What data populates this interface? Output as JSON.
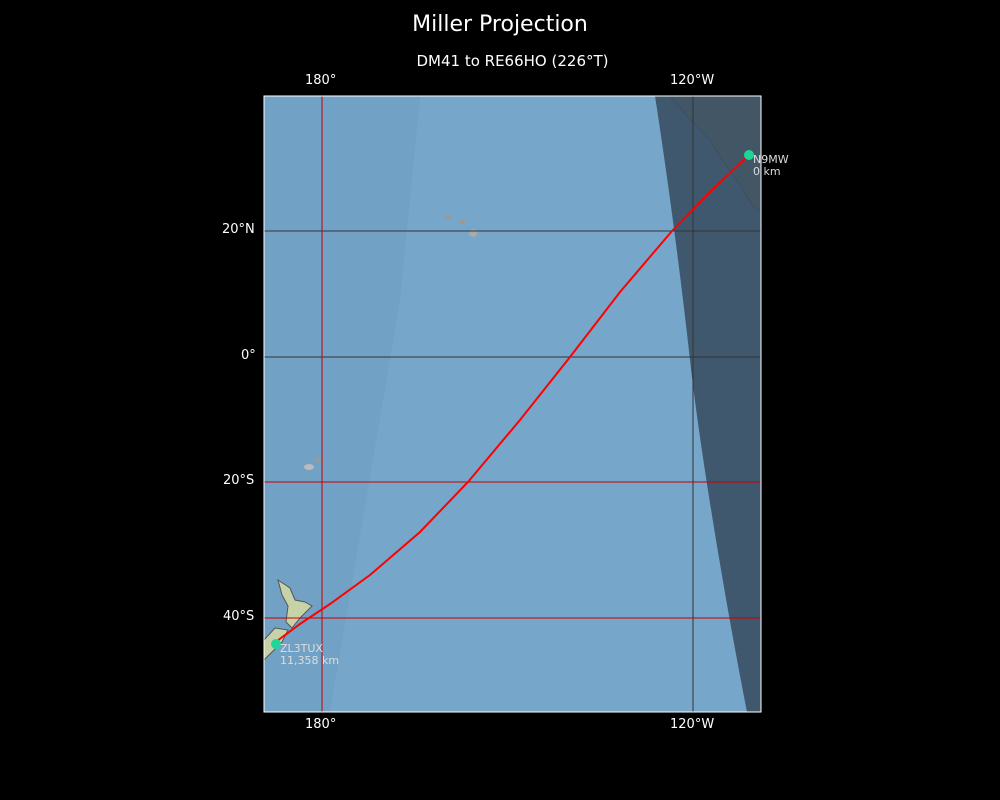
{
  "title": "Miller Projection",
  "subtitle": "DM41 to RE66HO (226°T)",
  "ticks": {
    "lon_top": [
      "180°",
      "120°W"
    ],
    "lon_bottom": [
      "180°",
      "120°W"
    ],
    "lat_left": [
      "20°N",
      "0°",
      "20°S",
      "40°S"
    ]
  },
  "stations": [
    {
      "call": "N9MW",
      "distance": "0 km",
      "lat": 32.0,
      "lon": -112.0
    },
    {
      "call": "ZL3TUX",
      "distance": "11,358 km",
      "lat": -44.0,
      "lon": 172.0
    }
  ],
  "colors": {
    "ocean": "#76a6c9",
    "night": "#3c5166",
    "path": "#ff0000",
    "marker": "#1fd699",
    "grid_day": "#333333",
    "grid_night": "#cc0000"
  }
}
